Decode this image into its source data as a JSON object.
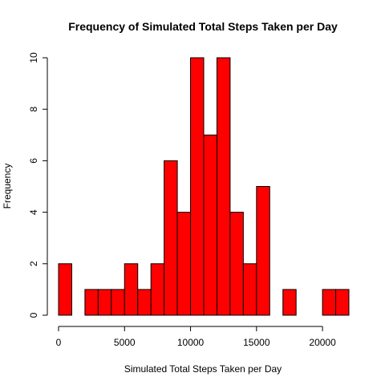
{
  "chart_data": {
    "type": "bar",
    "title": "Frequency of Simulated Total Steps Taken per Day",
    "xlabel": "Simulated Total Steps Taken per Day",
    "ylabel": "Frequency",
    "bin_width": 1000,
    "bins": [
      {
        "start": 0,
        "end": 1000,
        "count": 2
      },
      {
        "start": 1000,
        "end": 2000,
        "count": 0
      },
      {
        "start": 2000,
        "end": 3000,
        "count": 1
      },
      {
        "start": 3000,
        "end": 4000,
        "count": 1
      },
      {
        "start": 4000,
        "end": 5000,
        "count": 1
      },
      {
        "start": 5000,
        "end": 6000,
        "count": 2
      },
      {
        "start": 6000,
        "end": 7000,
        "count": 1
      },
      {
        "start": 7000,
        "end": 8000,
        "count": 2
      },
      {
        "start": 8000,
        "end": 9000,
        "count": 6
      },
      {
        "start": 9000,
        "end": 10000,
        "count": 4
      },
      {
        "start": 10000,
        "end": 11000,
        "count": 10
      },
      {
        "start": 11000,
        "end": 12000,
        "count": 7
      },
      {
        "start": 12000,
        "end": 13000,
        "count": 10
      },
      {
        "start": 13000,
        "end": 14000,
        "count": 4
      },
      {
        "start": 14000,
        "end": 15000,
        "count": 2
      },
      {
        "start": 15000,
        "end": 16000,
        "count": 5
      },
      {
        "start": 16000,
        "end": 17000,
        "count": 0
      },
      {
        "start": 17000,
        "end": 18000,
        "count": 1
      },
      {
        "start": 18000,
        "end": 19000,
        "count": 0
      },
      {
        "start": 19000,
        "end": 20000,
        "count": 0
      },
      {
        "start": 20000,
        "end": 21000,
        "count": 1
      },
      {
        "start": 21000,
        "end": 22000,
        "count": 1
      }
    ],
    "xlim": [
      0,
      22000
    ],
    "ylim": [
      0,
      10
    ],
    "x_ticks": [
      0,
      5000,
      10000,
      15000,
      20000
    ],
    "y_ticks": [
      0,
      2,
      4,
      6,
      8,
      10
    ],
    "grid": false,
    "bar_color": "#ff0000",
    "bar_border_color": "#000000"
  }
}
